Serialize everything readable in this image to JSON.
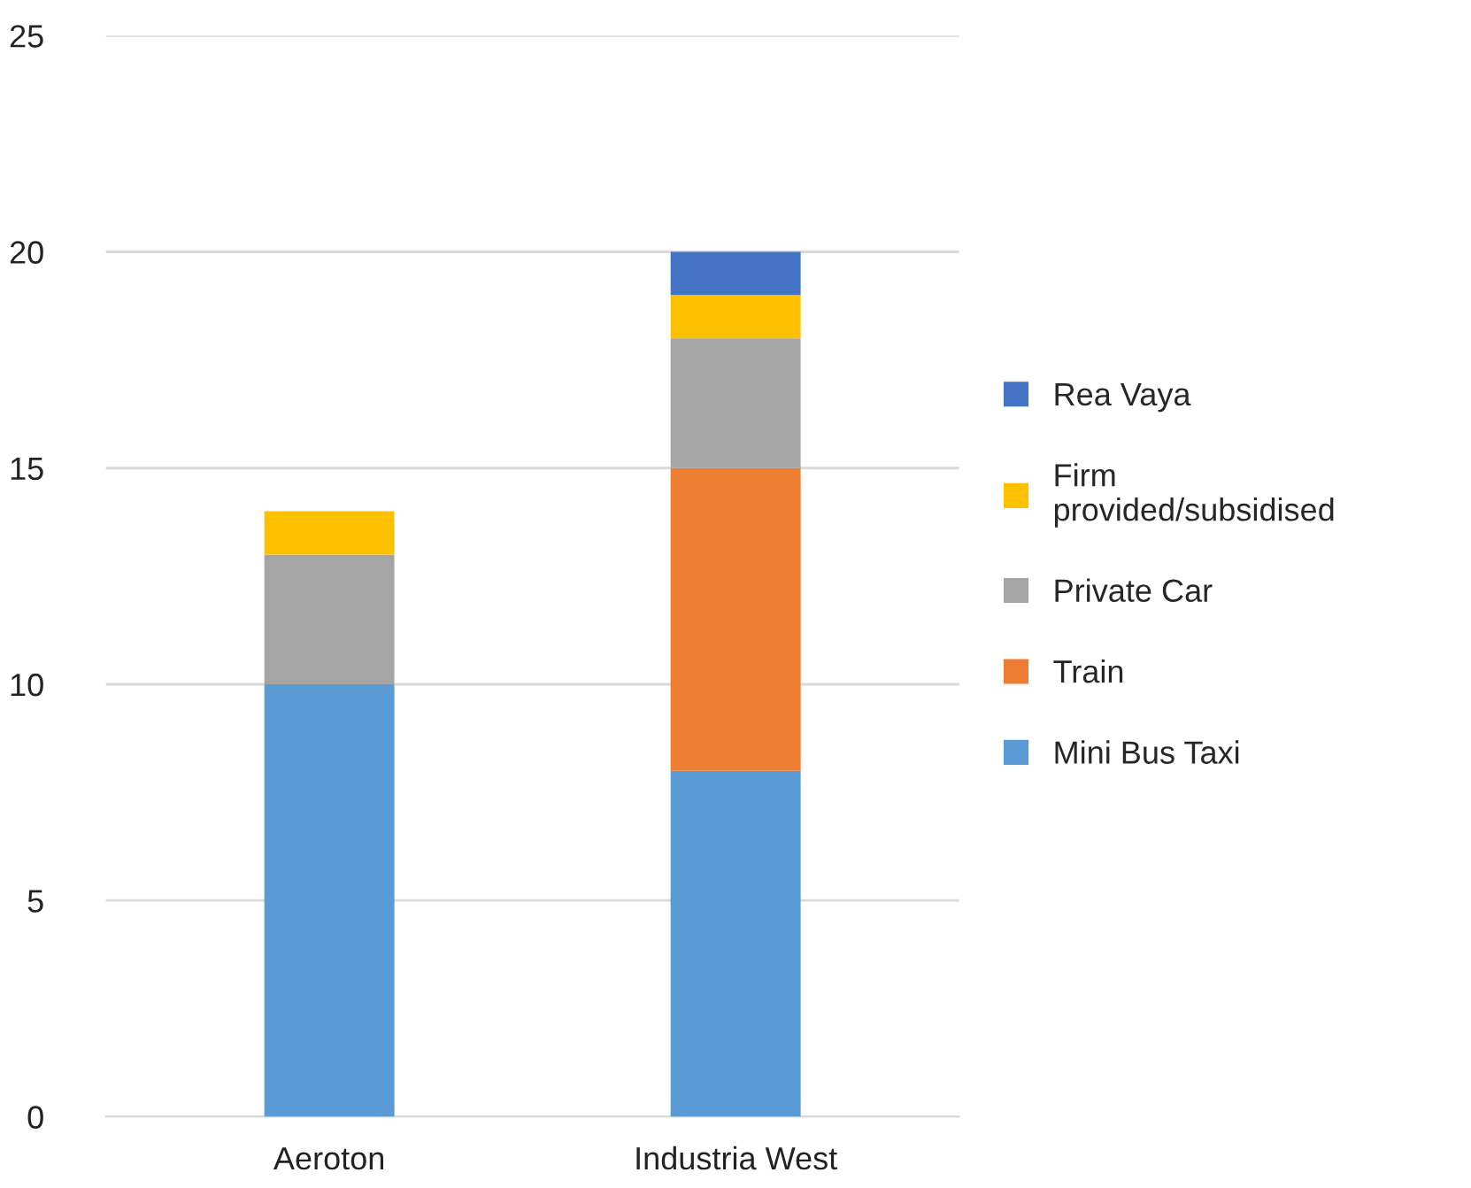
{
  "chart_data": {
    "type": "bar",
    "stacked": true,
    "categories": [
      "Aeroton",
      "Industria West"
    ],
    "series": [
      {
        "name": "Mini Bus Taxi",
        "color": "#5b9bd5",
        "values": [
          10,
          8
        ]
      },
      {
        "name": "Train",
        "color": "#ed7d31",
        "values": [
          null,
          7
        ]
      },
      {
        "name": "Private Car",
        "color": "#a5a5a5",
        "values": [
          3,
          3
        ]
      },
      {
        "name": "Firm\nprovided/subsidised",
        "color": "#ffc000",
        "values": [
          1,
          1
        ]
      },
      {
        "name": "Rea Vaya",
        "color": "#4472c4",
        "values": [
          null,
          1
        ]
      }
    ],
    "ylim": [
      0,
      25
    ],
    "yticks": [
      0,
      5,
      10,
      15,
      20,
      25
    ],
    "grid": "y",
    "legend": "right"
  }
}
